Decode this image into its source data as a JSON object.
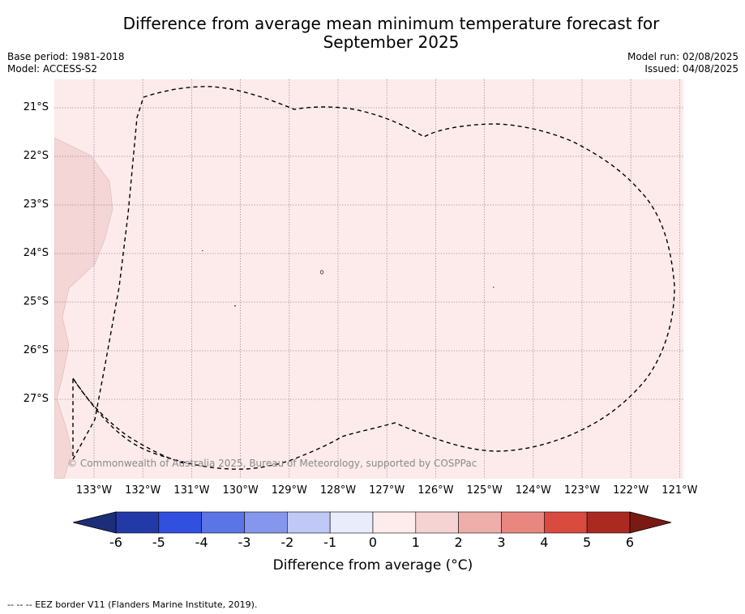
{
  "title_line1": "Difference from average mean minimum temperature forecast for",
  "title_line2": "September 2025",
  "base_period": "Base period: 1981-2018",
  "model": "Model: ACCESS-S2",
  "model_run": "Model run: 02/08/2025",
  "issued": "Issued: 04/08/2025",
  "copyright": "© Commonwealth of Australia 2025, Bureau of Meteorology, supported by COSPPac",
  "footnote": "--  --  -- EEZ border V11 (Flanders Marine Institute, 2019).",
  "lat_labels": [
    "21°S",
    "22°S",
    "23°S",
    "24°S",
    "25°S",
    "26°S",
    "27°S"
  ],
  "lon_labels": [
    "133°W",
    "132°W",
    "131°W",
    "130°W",
    "129°W",
    "128°W",
    "127°W",
    "126°W",
    "125°W",
    "124°W",
    "123°W",
    "122°W",
    "121°W"
  ],
  "colorbar": {
    "label": "Difference from average ($^\\circ$C)",
    "label_display": "Difference from average (°C)",
    "ticks": [
      "-6",
      "-5",
      "-4",
      "-3",
      "-2",
      "-1",
      "0",
      "1",
      "2",
      "3",
      "4",
      "5",
      "6"
    ],
    "low_extend_color": "#1c2e7a",
    "high_extend_color": "#7a1a14",
    "colors": [
      "#2439a8",
      "#3150e0",
      "#5c75e6",
      "#8597ed",
      "#c0c8f5",
      "#e8ecfb",
      "#fdeceb",
      "#f5d3d2",
      "#eeaea9",
      "#e88780",
      "#d94a3f",
      "#aa2a22"
    ]
  },
  "map": {
    "ocean_anomaly_color": "#fcebea",
    "land_anomaly_color": "#f3d6d5",
    "eez_line": "dashed"
  }
}
